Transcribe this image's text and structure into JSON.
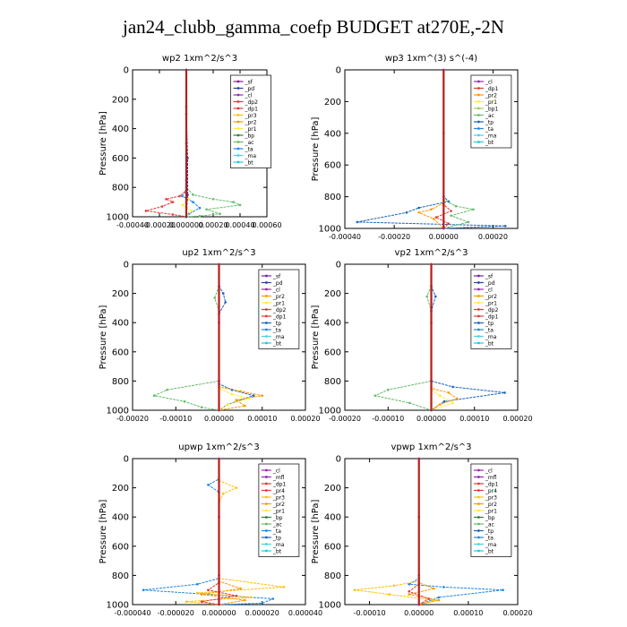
{
  "title": "jan24_clubb_gamma_coefp  BUDGET at270E,-2N",
  "colors": {
    "_sf": "#7b1fa2",
    "_pd": "#303f9f",
    "_cl": "#9c27b0",
    "_dp2": "#e53935",
    "_dp1": "#e53935",
    "_pr2": "#ff9800",
    "_pr3": "#ffc107",
    "_pr1": "#ffeb3b",
    "_bp": "#2e7d32",
    "_ac": "#66bb6a",
    "_ta": "#1e88e5",
    "_tp": "#1565c0",
    "_ma": "#4dd0e1",
    "_bt": "#26c6da",
    "_mfl": "#8e24aa",
    "_pr4": "#e53935",
    "_bp1": "#9ccc65",
    "_bp2": "#43a047"
  },
  "chart_data": [
    {
      "type": "line",
      "title": "wp2   1xm^2/s^3",
      "ylabel": "Pressure [hPa]",
      "xlim": [
        -0.0004,
        0.0006
      ],
      "ylim": [
        0,
        1000
      ],
      "y_inverted": true,
      "xticks": [
        -0.0004,
        -0.0002,
        0.0,
        0.0002,
        0.0004,
        0.0006
      ],
      "xtick_labels": [
        "-0.00040",
        "-0.00020",
        "0.000000",
        "0.00020",
        "0.00040",
        "0.00060"
      ],
      "yticks": [
        0,
        200,
        400,
        600,
        800,
        1000
      ],
      "legend": [
        "_sf",
        "_pd",
        "_cl",
        "_dp2",
        "_dp1",
        "_pr3",
        "_pr2",
        "_pr1",
        "_bp",
        "_ac",
        "_ta",
        "_ma",
        "_bt"
      ],
      "series": [
        {
          "name": "_ac",
          "x": [
            0,
            0,
            5e-05,
            0.0002,
            0.00035,
            0.0004,
            0.00015,
            0.00025,
            0.0001,
            0.0
          ],
          "y": [
            0,
            800,
            850,
            880,
            900,
            920,
            950,
            980,
            995,
            1000
          ]
        },
        {
          "name": "_ta",
          "x": [
            0,
            0,
            -3e-05,
            5e-05,
            0.0001,
            2e-05,
            0
          ],
          "y": [
            0,
            820,
            860,
            900,
            940,
            980,
            1000
          ]
        },
        {
          "name": "_dp1",
          "x": [
            0,
            0,
            -5e-05,
            -0.00015,
            -0.0001,
            -0.00018,
            -0.0003,
            -0.0001,
            0
          ],
          "y": [
            0,
            820,
            860,
            880,
            900,
            930,
            960,
            985,
            1000
          ]
        },
        {
          "name": "_pr1",
          "x": [
            0,
            0,
            2e-05,
            -3e-05,
            4e-05,
            0
          ],
          "y": [
            0,
            830,
            880,
            920,
            960,
            1000
          ]
        },
        {
          "name": "_sf",
          "x": [
            0,
            0,
            0,
            0,
            0
          ],
          "y": [
            0,
            250,
            500,
            750,
            1000
          ]
        },
        {
          "name": "_pd",
          "x": [
            0,
            0,
            1e-05,
            1e-05,
            0
          ],
          "y": [
            0,
            300,
            600,
            850,
            1000
          ]
        }
      ]
    },
    {
      "type": "line",
      "title": "wp3   1xm^(3) s^(-4)",
      "ylabel": "Pressure [hPa]",
      "xlim": [
        -0.0004,
        0.0003
      ],
      "ylim": [
        0,
        1000
      ],
      "y_inverted": true,
      "xticks": [
        -0.0004,
        -0.0002,
        0.0,
        0.0002
      ],
      "xtick_labels": [
        "-0.00040",
        "-0.00020",
        "0.00000",
        "0.00020"
      ],
      "yticks": [
        0,
        200,
        400,
        600,
        800,
        1000
      ],
      "legend": [
        "_cl",
        "_dp1",
        "_pr2",
        "_pr1",
        "_bp1",
        "_ac",
        "_tp",
        "_ta",
        "_ma",
        "_bt"
      ],
      "series": [
        {
          "name": "_tp",
          "x": [
            0,
            0,
            2e-05,
            -0.0001,
            -0.00015,
            -0.00035,
            0.00025,
            0
          ],
          "y": [
            0,
            800,
            830,
            870,
            900,
            960,
            985,
            1000
          ]
        },
        {
          "name": "_ac",
          "x": [
            0,
            0,
            5e-05,
            0.00012,
            3e-05,
            0.0001,
            0
          ],
          "y": [
            0,
            820,
            860,
            880,
            920,
            960,
            1000
          ]
        },
        {
          "name": "_pr2",
          "x": [
            0,
            0,
            -5e-05,
            -0.0001,
            -4e-05,
            0
          ],
          "y": [
            0,
            840,
            880,
            900,
            940,
            1000
          ]
        },
        {
          "name": "_dp1",
          "x": [
            0,
            0,
            3e-05,
            -3e-05,
            2e-05,
            0
          ],
          "y": [
            0,
            850,
            890,
            930,
            970,
            1000
          ]
        },
        {
          "name": "_cl",
          "x": [
            0,
            0,
            0,
            0
          ],
          "y": [
            0,
            400,
            800,
            1000
          ]
        }
      ]
    },
    {
      "type": "line",
      "title": "up2   1xm^2/s^3",
      "ylabel": "Pressure [hPa]",
      "xlim": [
        -0.0002,
        0.0002
      ],
      "ylim": [
        0,
        1000
      ],
      "y_inverted": true,
      "xticks": [
        -0.0002,
        -0.0001,
        0.0,
        0.0001,
        0.0002
      ],
      "xtick_labels": [
        "-0.00020",
        "-0.00010",
        "0.00000",
        "0.00010",
        "0.00020"
      ],
      "yticks": [
        0,
        200,
        400,
        600,
        800,
        1000
      ],
      "legend": [
        "_sf",
        "_pd",
        "_cl",
        "_pr2",
        "_pr1",
        "_dp2",
        "_dp1",
        "_tp",
        "_ta",
        "_ma",
        "_bt"
      ],
      "series": [
        {
          "name": "_ac",
          "x": [
            0,
            0,
            -1e-05,
            0,
            0,
            -0.00012,
            -0.00015,
            -8e-05,
            -4e-05,
            0
          ],
          "y": [
            0,
            150,
            230,
            320,
            800,
            860,
            900,
            940,
            980,
            1000
          ]
        },
        {
          "name": "_tp",
          "x": [
            0,
            0,
            1e-05,
            1.5e-05,
            0,
            0,
            3e-05,
            8e-05,
            2e-05,
            0
          ],
          "y": [
            0,
            150,
            200,
            260,
            340,
            820,
            860,
            900,
            960,
            1000
          ]
        },
        {
          "name": "_pr2",
          "x": [
            0,
            0,
            5e-05,
            0.0001,
            4e-05,
            6e-05,
            0
          ],
          "y": [
            0,
            840,
            870,
            900,
            930,
            970,
            1000
          ]
        },
        {
          "name": "_pr1",
          "x": [
            0,
            0,
            3e-05,
            7e-05,
            2e-05,
            0
          ],
          "y": [
            0,
            850,
            890,
            920,
            960,
            1000
          ]
        },
        {
          "name": "_sf",
          "x": [
            0,
            0,
            0,
            0
          ],
          "y": [
            0,
            400,
            800,
            1000
          ]
        }
      ]
    },
    {
      "type": "line",
      "title": "vp2   1xm^2/s^3",
      "ylabel": "Pressure [hPa]",
      "xlim": [
        -0.0002,
        0.0002
      ],
      "ylim": [
        0,
        1000
      ],
      "y_inverted": true,
      "xticks": [
        -0.0002,
        -0.0001,
        0.0,
        0.0001,
        0.0002
      ],
      "xtick_labels": [
        "-0.00020",
        "-0.00010",
        "0.00000",
        "0.00010",
        "0.00020"
      ],
      "yticks": [
        0,
        200,
        400,
        600,
        800,
        1000
      ],
      "legend": [
        "_sf",
        "_pd",
        "_cl",
        "_pr2",
        "_pr1",
        "_dp2",
        "_dp1",
        "_tp",
        "_ta",
        "_ma",
        "_bt"
      ],
      "series": [
        {
          "name": "_ac",
          "x": [
            0,
            0,
            -1e-05,
            0,
            0,
            -0.0001,
            -0.00013,
            -5e-05,
            0
          ],
          "y": [
            0,
            150,
            220,
            320,
            800,
            860,
            900,
            950,
            1000
          ]
        },
        {
          "name": "_tp",
          "x": [
            0,
            0,
            1e-05,
            0,
            0,
            5e-05,
            0.00017,
            3e-05,
            0
          ],
          "y": [
            0,
            150,
            220,
            320,
            800,
            840,
            880,
            940,
            1000
          ]
        },
        {
          "name": "_pr2",
          "x": [
            0,
            0,
            4e-05,
            6e-05,
            2e-05,
            0
          ],
          "y": [
            0,
            850,
            880,
            920,
            960,
            1000
          ]
        },
        {
          "name": "_pr1",
          "x": [
            0,
            0,
            2e-05,
            5e-05,
            0
          ],
          "y": [
            0,
            860,
            900,
            950,
            1000
          ]
        },
        {
          "name": "_sf",
          "x": [
            0,
            0,
            0,
            0
          ],
          "y": [
            0,
            400,
            800,
            1000
          ]
        }
      ]
    },
    {
      "type": "line",
      "title": "upwp   1xm^2/s^3",
      "ylabel": "Pressure [hPa]",
      "xlim": [
        -4e-05,
        4e-05
      ],
      "ylim": [
        0,
        1000
      ],
      "y_inverted": true,
      "xticks": [
        -4e-05,
        -2e-05,
        0.0,
        2e-05,
        4e-05
      ],
      "xtick_labels": [
        "-0.000040",
        "-0.000020",
        "0.000000",
        "0.000020",
        "0.000040"
      ],
      "yticks": [
        0,
        200,
        400,
        600,
        800,
        1000
      ],
      "legend": [
        "_cl",
        "_mfl",
        "_dp1",
        "_pr4",
        "_pr3",
        "_pr2",
        "_pr1",
        "_bp",
        "_ac",
        "_ta",
        "_tp",
        "_ma",
        "_bt"
      ],
      "series": [
        {
          "name": "_ta",
          "x": [
            0,
            0,
            -5e-06,
            0,
            0,
            -1e-05,
            -3.5e-05,
            2.5e-05,
            2e-05,
            0
          ],
          "y": [
            0,
            140,
            180,
            230,
            820,
            860,
            900,
            960,
            990,
            1000
          ]
        },
        {
          "name": "_pr3",
          "x": [
            0,
            0,
            8e-06,
            2e-06,
            0,
            0,
            3e-05,
            -1e-05,
            1.5e-05,
            -1.5e-05,
            0
          ],
          "y": [
            0,
            150,
            200,
            240,
            300,
            820,
            880,
            920,
            950,
            980,
            1000
          ]
        },
        {
          "name": "_pr2",
          "x": [
            0,
            0,
            1e-05,
            -8e-06,
            1.2e-05,
            0
          ],
          "y": [
            0,
            840,
            890,
            930,
            970,
            1000
          ]
        },
        {
          "name": "_dp1",
          "x": [
            0,
            0,
            -5e-06,
            8e-06,
            -8e-06,
            0
          ],
          "y": [
            0,
            850,
            900,
            940,
            980,
            1000
          ]
        },
        {
          "name": "_cl",
          "x": [
            0,
            0,
            0,
            0
          ],
          "y": [
            0,
            400,
            800,
            1000
          ]
        }
      ]
    },
    {
      "type": "line",
      "title": "vpwp   1xm^2/s^3",
      "ylabel": "Pressure [hPa]",
      "xlim": [
        -0.00015,
        0.0002
      ],
      "ylim": [
        0,
        1000
      ],
      "y_inverted": true,
      "xticks": [
        -0.0001,
        0.0,
        0.0001,
        0.0002
      ],
      "xtick_labels": [
        "-0.00010",
        "0.00000",
        "0.00010",
        "0.00020"
      ],
      "yticks": [
        0,
        200,
        400,
        600,
        800,
        1000
      ],
      "legend": [
        "_cl",
        "_mfl",
        "_dp1",
        "_pr4",
        "_pr3",
        "_pr2",
        "_pr1",
        "_bp",
        "_ac",
        "_tp",
        "_ta",
        "_ma",
        "_bt"
      ],
      "series": [
        {
          "name": "_ta",
          "x": [
            0,
            0,
            -2e-05,
            5e-05,
            0.00017,
            4e-05,
            0
          ],
          "y": [
            0,
            820,
            860,
            880,
            900,
            950,
            1000
          ]
        },
        {
          "name": "_pr3",
          "x": [
            0,
            0,
            -5e-05,
            -0.00013,
            -6e-05,
            3e-05,
            0
          ],
          "y": [
            0,
            840,
            870,
            900,
            930,
            970,
            1000
          ]
        },
        {
          "name": "_pr2",
          "x": [
            0,
            0,
            3e-05,
            -2e-05,
            4e-05,
            0
          ],
          "y": [
            0,
            850,
            890,
            930,
            970,
            1000
          ]
        },
        {
          "name": "_dp1",
          "x": [
            0,
            0,
            -2e-05,
            2e-05,
            0
          ],
          "y": [
            0,
            860,
            910,
            960,
            1000
          ]
        },
        {
          "name": "_cl",
          "x": [
            0,
            0,
            0,
            0
          ],
          "y": [
            0,
            400,
            800,
            1000
          ]
        }
      ]
    }
  ]
}
